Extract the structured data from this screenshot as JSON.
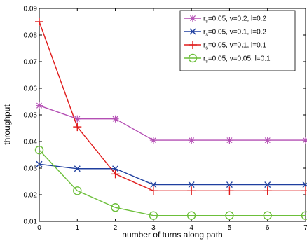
{
  "chart_data": {
    "type": "line",
    "title": "",
    "xlabel": "number of turns along path",
    "ylabel": "throughput",
    "xlim": [
      0,
      7
    ],
    "ylim": [
      0.01,
      0.09
    ],
    "x": [
      0,
      1,
      2,
      3,
      4,
      5,
      6,
      7
    ],
    "x_ticks": [
      "0",
      "1",
      "2",
      "3",
      "4",
      "5",
      "6",
      "7"
    ],
    "y_ticks": [
      "0.01",
      "0.02",
      "0.03",
      "0.04",
      "0.05",
      "0.06",
      "0.07",
      "0.08",
      "0.09"
    ],
    "grid": false,
    "legend_position": "top-right",
    "series": [
      {
        "name_main": "r",
        "name_sub": "s",
        "name_rest": "=0.05, v=0.2, l=0.2",
        "color": "#b44fb4",
        "marker": "asterisk",
        "values": [
          0.0535,
          0.0485,
          0.0485,
          0.0405,
          0.0405,
          0.0405,
          0.0405,
          0.0405
        ]
      },
      {
        "name_main": "r",
        "name_sub": "s",
        "name_rest": "=0.05, v=0.1, l=0.2",
        "color": "#1f3f9f",
        "marker": "x",
        "values": [
          0.0315,
          0.0298,
          0.0298,
          0.0238,
          0.0238,
          0.0238,
          0.0238,
          0.0238
        ]
      },
      {
        "name_main": "r",
        "name_sub": "s",
        "name_rest": "=0.05, v=0.1, l=0.1",
        "color": "#e01b1b",
        "marker": "plus",
        "values": [
          0.085,
          0.0455,
          0.0278,
          0.0215,
          0.0215,
          0.0215,
          0.0215,
          0.0215
        ]
      },
      {
        "name_main": "r",
        "name_sub": "s",
        "name_rest": "=0.05, v=0.05, l=0.1",
        "color": "#6cbf3a",
        "marker": "circle",
        "values": [
          0.0368,
          0.0215,
          0.0152,
          0.0122,
          0.0122,
          0.0122,
          0.0122,
          0.0122
        ]
      }
    ]
  }
}
